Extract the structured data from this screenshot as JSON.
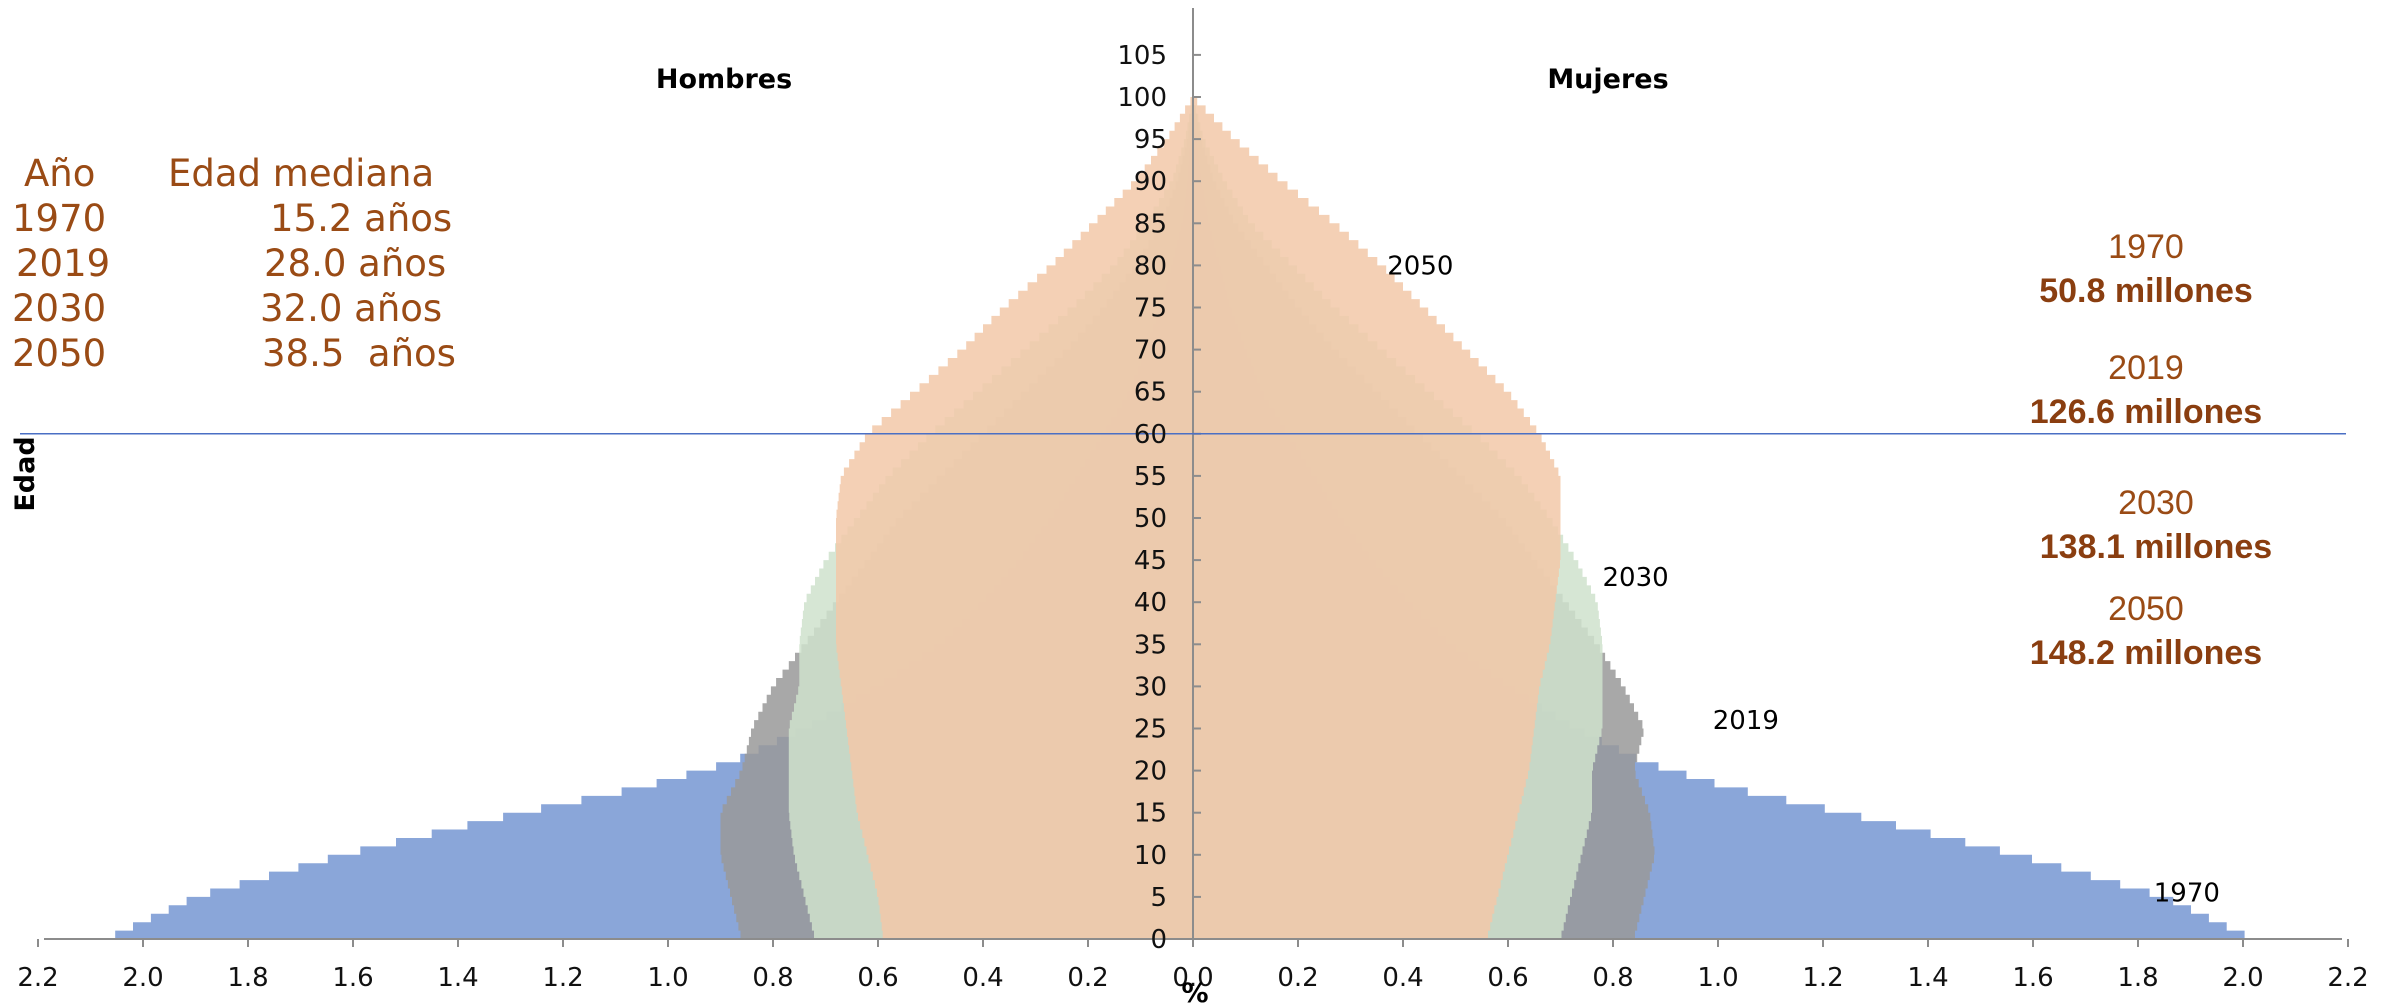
{
  "chart_data": {
    "type": "area",
    "subtype": "population-pyramid",
    "left_label": "Hombres",
    "right_label": "Mujeres",
    "ylabel": "Edad",
    "xlabel": "%",
    "xlim": [
      -2.2,
      2.2
    ],
    "ylim": [
      0,
      106
    ],
    "x_ticks": [
      "2.2",
      "2.0",
      "1.8",
      "1.6",
      "1.4",
      "1.2",
      "1.0",
      "0.8",
      "0.6",
      "0.4",
      "0.2",
      "0.0",
      "0.2",
      "0.4",
      "0.6",
      "0.8",
      "1.0",
      "1.2",
      "1.4",
      "1.6",
      "1.8",
      "2.0",
      "2.2"
    ],
    "y_ticks": [
      0,
      5,
      10,
      15,
      20,
      25,
      30,
      35,
      40,
      45,
      50,
      55,
      60,
      65,
      70,
      75,
      80,
      85,
      90,
      95,
      100,
      105
    ],
    "reference_line_age": 60,
    "series": [
      {
        "name": "1970",
        "color": "#8aa6d9",
        "ages": [
          0,
          5,
          10,
          15,
          18,
          21,
          25,
          30,
          35,
          40,
          45,
          50,
          55,
          60,
          65,
          70,
          75,
          80,
          85,
          90,
          95,
          100
        ],
        "men": [
          2.07,
          1.9,
          1.62,
          1.28,
          1.05,
          0.88,
          0.74,
          0.6,
          0.48,
          0.4,
          0.33,
          0.27,
          0.22,
          0.17,
          0.12,
          0.09,
          0.06,
          0.04,
          0.02,
          0.01,
          0.005,
          0.0
        ],
        "women": [
          2.02,
          1.85,
          1.57,
          1.24,
          1.02,
          0.86,
          0.73,
          0.6,
          0.49,
          0.41,
          0.34,
          0.28,
          0.23,
          0.18,
          0.13,
          0.1,
          0.07,
          0.05,
          0.03,
          0.015,
          0.005,
          0.0
        ]
      },
      {
        "name": "2019",
        "color": "#999999",
        "ages": [
          0,
          5,
          10,
          15,
          20,
          25,
          30,
          35,
          40,
          45,
          50,
          55,
          60,
          65,
          70,
          75,
          80,
          85,
          90,
          95,
          100
        ],
        "men": [
          0.86,
          0.88,
          0.9,
          0.9,
          0.86,
          0.84,
          0.8,
          0.74,
          0.68,
          0.62,
          0.56,
          0.48,
          0.4,
          0.32,
          0.24,
          0.17,
          0.11,
          0.06,
          0.03,
          0.01,
          0.0
        ],
        "women": [
          0.84,
          0.86,
          0.88,
          0.87,
          0.84,
          0.86,
          0.82,
          0.77,
          0.71,
          0.65,
          0.59,
          0.51,
          0.43,
          0.35,
          0.27,
          0.2,
          0.14,
          0.08,
          0.04,
          0.015,
          0.0
        ]
      },
      {
        "name": "2030",
        "color": "#cfe2cd",
        "ages": [
          0,
          5,
          10,
          15,
          20,
          25,
          30,
          35,
          40,
          45,
          50,
          55,
          60,
          65,
          70,
          75,
          80,
          85,
          90,
          95,
          100
        ],
        "men": [
          0.72,
          0.74,
          0.76,
          0.77,
          0.77,
          0.77,
          0.75,
          0.75,
          0.74,
          0.7,
          0.64,
          0.58,
          0.5,
          0.41,
          0.32,
          0.23,
          0.15,
          0.09,
          0.04,
          0.015,
          0.0
        ],
        "women": [
          0.7,
          0.72,
          0.74,
          0.76,
          0.76,
          0.78,
          0.78,
          0.78,
          0.77,
          0.73,
          0.68,
          0.62,
          0.54,
          0.45,
          0.36,
          0.27,
          0.19,
          0.11,
          0.06,
          0.02,
          0.0
        ]
      },
      {
        "name": "2050",
        "color": "#f2c8a8",
        "ages": [
          0,
          5,
          10,
          15,
          20,
          25,
          30,
          35,
          40,
          45,
          50,
          55,
          60,
          65,
          70,
          75,
          80,
          85,
          90,
          95,
          100
        ],
        "men": [
          0.59,
          0.6,
          0.62,
          0.64,
          0.65,
          0.66,
          0.67,
          0.68,
          0.68,
          0.68,
          0.68,
          0.67,
          0.62,
          0.53,
          0.44,
          0.36,
          0.27,
          0.19,
          0.11,
          0.05,
          0.0
        ],
        "women": [
          0.56,
          0.58,
          0.6,
          0.62,
          0.64,
          0.65,
          0.66,
          0.68,
          0.69,
          0.7,
          0.7,
          0.7,
          0.66,
          0.6,
          0.52,
          0.44,
          0.36,
          0.27,
          0.17,
          0.08,
          0.0
        ]
      }
    ],
    "curve_labels": [
      {
        "text": "2050",
        "age": 80,
        "pct": 0.37
      },
      {
        "text": "2030",
        "age": 43,
        "pct": 0.78
      },
      {
        "text": "2019",
        "age": 26,
        "pct": 0.99
      },
      {
        "text": "1970",
        "age": 5.5,
        "pct": 1.83
      }
    ]
  },
  "median_age_table": {
    "header_year": "Año",
    "header_median": "Edad mediana",
    "rows": [
      {
        "year": "1970",
        "median": "15.2 años"
      },
      {
        "year": "2019",
        "median": "28.0 años"
      },
      {
        "year": "2030",
        "median": "32.0 años"
      },
      {
        "year": "2050",
        "median": "38.5  años"
      }
    ]
  },
  "population_totals": [
    {
      "year": "1970",
      "total": "50.8 millones"
    },
    {
      "year": "2019",
      "total": "126.6 millones"
    },
    {
      "year": "2030",
      "total": "138.1 millones"
    },
    {
      "year": "2050",
      "total": "148.2 millones"
    }
  ]
}
